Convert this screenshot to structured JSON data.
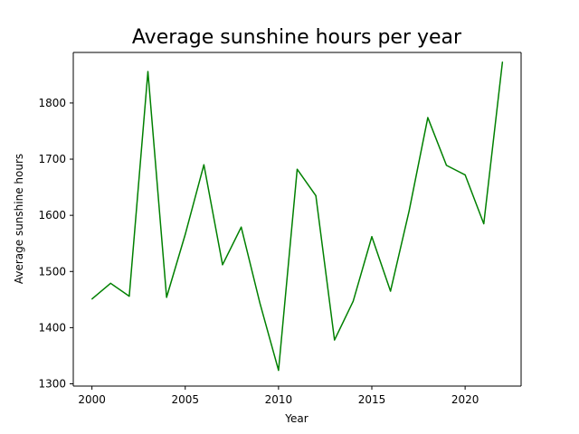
{
  "chart_data": {
    "type": "line",
    "title": "Average sunshine hours per year",
    "xlabel": "Year",
    "ylabel": "Average sunshine hours",
    "xlim": [
      1999,
      2023
    ],
    "ylim": [
      1296,
      1890
    ],
    "x_ticks": [
      2000,
      2005,
      2010,
      2015,
      2020
    ],
    "y_ticks": [
      1300,
      1400,
      1500,
      1600,
      1700,
      1800
    ],
    "grid": false,
    "legend": "none",
    "series": [
      {
        "color": "#008000",
        "x": [
          2000,
          2001,
          2002,
          2003,
          2004,
          2005,
          2006,
          2007,
          2008,
          2009,
          2010,
          2011,
          2012,
          2013,
          2014,
          2015,
          2016,
          2017,
          2018,
          2019,
          2020,
          2021,
          2022
        ],
        "y": [
          1451,
          1479,
          1456,
          1856,
          1454,
          1566,
          1690,
          1512,
          1579,
          1444,
          1324,
          1682,
          1635,
          1378,
          1447,
          1562,
          1465,
          1608,
          1774,
          1689,
          1672,
          1585,
          1873
        ]
      }
    ]
  }
}
